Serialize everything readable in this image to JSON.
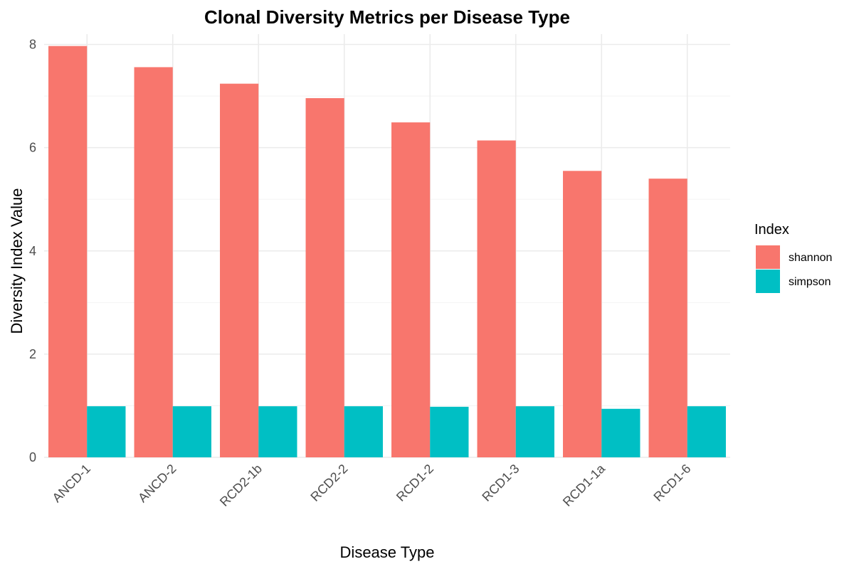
{
  "chart_data": {
    "type": "bar",
    "title": "Clonal Diversity Metrics per Disease Type",
    "xlabel": "Disease Type",
    "ylabel": "Diversity Index Value",
    "categories": [
      "ANCD-1",
      "ANCD-2",
      "RCD2-1b",
      "RCD2-2",
      "RCD1-2",
      "RCD1-3",
      "RCD1-1a",
      "RCD1-6"
    ],
    "series": [
      {
        "name": "shannon",
        "color": "#F8766D",
        "values": [
          7.97,
          7.56,
          7.24,
          6.96,
          6.49,
          6.14,
          5.55,
          5.4
        ]
      },
      {
        "name": "simpson",
        "color": "#00BFC4",
        "values": [
          0.99,
          0.99,
          0.99,
          0.99,
          0.98,
          0.99,
          0.94,
          0.99
        ]
      }
    ],
    "ylim": [
      0,
      8.2
    ],
    "yticks": [
      0,
      2,
      4,
      6,
      8
    ],
    "grid": true,
    "legend": {
      "title": "Index",
      "position": "right"
    }
  }
}
